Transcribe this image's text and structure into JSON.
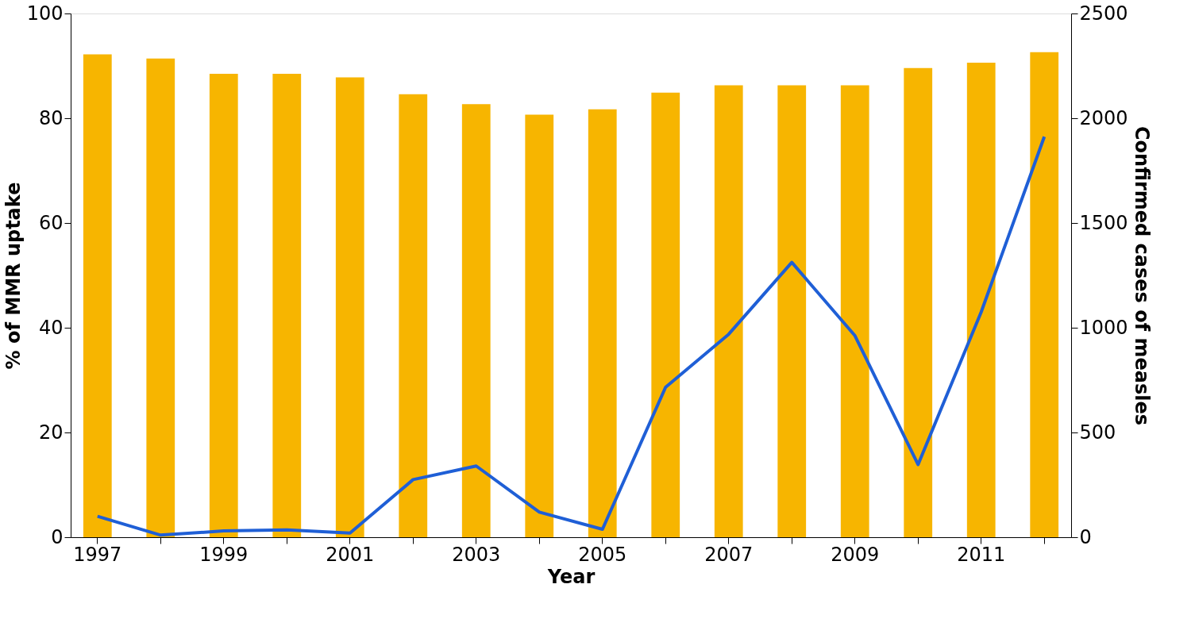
{
  "chart_data": {
    "type": "bar",
    "xlabel": "Year",
    "ylabel": "% of MMR uptake",
    "y2label": "Confirmed cases of measles",
    "categories": [
      "1997",
      null,
      "1999",
      null,
      "2001",
      null,
      "2003",
      null,
      "2005",
      null,
      "2007",
      null,
      "2009",
      null,
      "2011",
      null
    ],
    "series": [
      {
        "color": "#f7b500",
        "values": [
          92.2,
          91.4,
          88.5,
          88.5,
          87.8,
          84.6,
          82.7,
          80.7,
          81.7,
          84.9,
          86.3,
          86.3,
          86.3,
          89.6,
          90.6,
          92.6
        ]
      },
      {
        "type": "line",
        "axis": "y2",
        "color": "#1f5fd6",
        "values": [
          100,
          10,
          30,
          35,
          20,
          275,
          340,
          120,
          38,
          716,
          969,
          1312,
          962,
          347,
          1075,
          1912
        ]
      }
    ],
    "ylim": [
      0,
      100
    ],
    "yticks": [
      0,
      20,
      40,
      60,
      80,
      100
    ],
    "y2lim": [
      0,
      2500
    ],
    "y2ticks": [
      0,
      500,
      1000,
      1500,
      2000,
      2500
    ],
    "grid": false
  }
}
